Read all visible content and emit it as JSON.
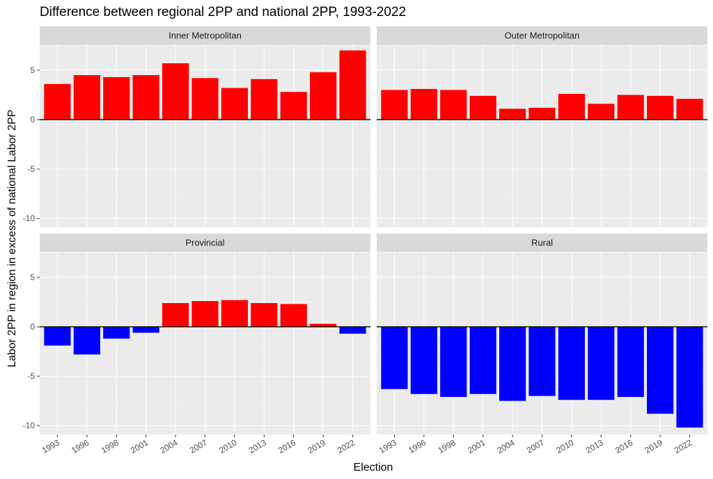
{
  "chart_data": {
    "type": "bar",
    "title": "Difference between regional 2PP and national 2PP, 1993-2022",
    "xlabel": "Election",
    "ylabel": "Labor 2PP in region in excess of national Labor 2PP",
    "categories": [
      "1993",
      "1996",
      "1998",
      "2001",
      "2004",
      "2007",
      "2010",
      "2013",
      "2016",
      "2019",
      "2022"
    ],
    "ylim": [
      -10.9,
      7.6
    ],
    "yticks": [
      -10,
      -5,
      0,
      5
    ],
    "ytick_labels": [
      "-10",
      "-5",
      "0",
      "5"
    ],
    "grid": true,
    "legend": "none",
    "positive_color": "#ff0000",
    "negative_color": "#0000ff",
    "panels": [
      {
        "name": "Inner Metropolitan",
        "values": [
          3.6,
          4.5,
          4.3,
          4.5,
          5.7,
          4.2,
          3.2,
          4.1,
          2.8,
          4.8,
          7.0
        ]
      },
      {
        "name": "Outer Metropolitan",
        "values": [
          3.0,
          3.1,
          3.0,
          2.4,
          1.1,
          1.2,
          2.6,
          1.6,
          2.5,
          2.4,
          2.1
        ]
      },
      {
        "name": "Provincial",
        "values": [
          -1.9,
          -2.8,
          -1.2,
          -0.6,
          2.4,
          2.6,
          2.7,
          2.4,
          2.3,
          0.3,
          -0.7
        ]
      },
      {
        "name": "Rural",
        "values": [
          -6.3,
          -6.8,
          -7.1,
          -6.8,
          -7.5,
          -7.0,
          -7.4,
          -7.4,
          -7.1,
          -8.8,
          -10.2
        ]
      }
    ]
  }
}
